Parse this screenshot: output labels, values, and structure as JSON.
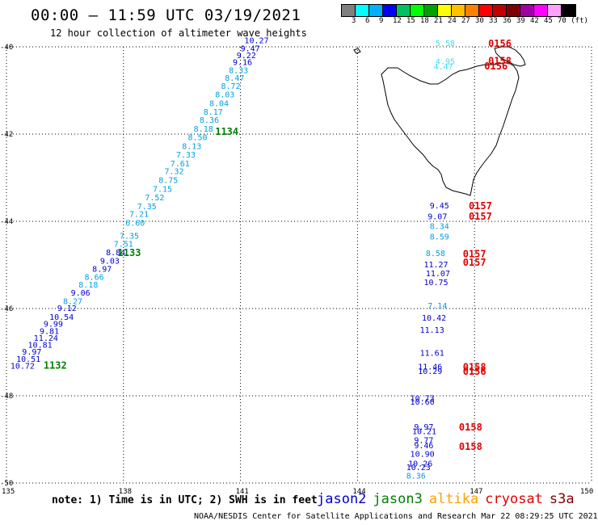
{
  "header": {
    "title": "00:00 – 11:59 UTC 03/19/2021",
    "subtitle": "12 hour collection of altimeter wave heights"
  },
  "colorbar": {
    "colors": [
      "#808080",
      "#00ffff",
      "#00b0ff",
      "#0000ff",
      "#00c060",
      "#00ff00",
      "#00a000",
      "#ffff00",
      "#ffc000",
      "#ff8000",
      "#ff0000",
      "#c00000",
      "#800000",
      "#a000a0",
      "#ff00ff",
      "#ffa0ff",
      "#000000"
    ],
    "labels": [
      "3",
      "6",
      "9",
      "12",
      "15",
      "18",
      "21",
      "24",
      "27",
      "30",
      "33",
      "36",
      "39",
      "42",
      "45",
      "70 (ft)"
    ]
  },
  "axes": {
    "lat_labels": [
      "-40",
      "-42",
      "-44",
      "-46",
      "-48",
      "-50"
    ],
    "lat_values": [
      -40,
      -42,
      -44,
      -46,
      -48,
      -50
    ],
    "lon_labels": [
      "135",
      "138",
      "141",
      "144",
      "147",
      "150"
    ],
    "lon_values": [
      135,
      138,
      141,
      144,
      147,
      150
    ],
    "lon_range": [
      135,
      150
    ],
    "lat_range": [
      -40,
      -50
    ]
  },
  "track_west": {
    "values": [
      {
        "v": "10.72",
        "lon": 135.1,
        "lat": -47.38,
        "c": "#0000cd"
      },
      {
        "v": "10.51",
        "lon": 135.25,
        "lat": -47.22,
        "c": "#0000cd"
      },
      {
        "v": "9.97",
        "lon": 135.4,
        "lat": -47.06,
        "c": "#0000cd"
      },
      {
        "v": "10.81",
        "lon": 135.55,
        "lat": -46.9,
        "c": "#0000cd"
      },
      {
        "v": "11.24",
        "lon": 135.7,
        "lat": -46.74,
        "c": "#0000cd"
      },
      {
        "v": "9.81",
        "lon": 135.85,
        "lat": -46.58,
        "c": "#0000cd"
      },
      {
        "v": "9.99",
        "lon": 135.95,
        "lat": -46.42,
        "c": "#0000cd"
      },
      {
        "v": "10.54",
        "lon": 136.1,
        "lat": -46.26,
        "c": "#0000cd"
      },
      {
        "v": "9.12",
        "lon": 136.3,
        "lat": -46.06,
        "c": "#0000cd"
      },
      {
        "v": "8.27",
        "lon": 136.45,
        "lat": -45.9,
        "c": "#00a0e0"
      },
      {
        "v": "9.06",
        "lon": 136.65,
        "lat": -45.7,
        "c": "#0000cd"
      },
      {
        "v": "8.18",
        "lon": 136.85,
        "lat": -45.52,
        "c": "#00a0e0"
      },
      {
        "v": "8.66",
        "lon": 137.0,
        "lat": -45.34,
        "c": "#00a0e0"
      },
      {
        "v": "8.97",
        "lon": 137.2,
        "lat": -45.16,
        "c": "#0000cd"
      },
      {
        "v": "9.03",
        "lon": 137.4,
        "lat": -44.97,
        "c": "#0000cd"
      },
      {
        "v": "8.84",
        "lon": 137.55,
        "lat": -44.78,
        "c": "#0000cd"
      },
      {
        "v": "7.51",
        "lon": 137.75,
        "lat": -44.58,
        "c": "#00a0e0"
      },
      {
        "v": "7.35",
        "lon": 137.9,
        "lat": -44.4,
        "c": "#00a0e0"
      },
      {
        "v": "6.60",
        "lon": 138.05,
        "lat": -44.1,
        "c": "#00a0e0"
      },
      {
        "v": "7.21",
        "lon": 138.15,
        "lat": -43.9,
        "c": "#00a0e0"
      },
      {
        "v": "7.35",
        "lon": 138.35,
        "lat": -43.72,
        "c": "#00a0e0"
      },
      {
        "v": "7.52",
        "lon": 138.55,
        "lat": -43.52,
        "c": "#00a0e0"
      },
      {
        "v": "7.15",
        "lon": 138.75,
        "lat": -43.32,
        "c": "#00a0e0"
      },
      {
        "v": "8.75",
        "lon": 138.9,
        "lat": -43.12,
        "c": "#00a0e0"
      },
      {
        "v": "7.32",
        "lon": 139.05,
        "lat": -42.92,
        "c": "#00a0e0"
      },
      {
        "v": "7.61",
        "lon": 139.2,
        "lat": -42.74,
        "c": "#00a0e0"
      },
      {
        "v": "7.33",
        "lon": 139.35,
        "lat": -42.54,
        "c": "#00a0e0"
      },
      {
        "v": "8.13",
        "lon": 139.5,
        "lat": -42.34,
        "c": "#00a0e0"
      },
      {
        "v": "8.50",
        "lon": 139.65,
        "lat": -42.14,
        "c": "#00a0e0"
      },
      {
        "v": "8.18",
        "lon": 139.8,
        "lat": -41.94,
        "c": "#00a0e0"
      },
      {
        "v": "8.36",
        "lon": 139.95,
        "lat": -41.74,
        "c": "#00a0e0"
      },
      {
        "v": "8.17",
        "lon": 140.05,
        "lat": -41.56,
        "c": "#00a0e0"
      },
      {
        "v": "8.04",
        "lon": 140.2,
        "lat": -41.36,
        "c": "#00a0e0"
      },
      {
        "v": "8.03",
        "lon": 140.35,
        "lat": -41.16,
        "c": "#00a0e0"
      },
      {
        "v": "8.72",
        "lon": 140.5,
        "lat": -40.96,
        "c": "#00a0e0"
      },
      {
        "v": "8.47",
        "lon": 140.6,
        "lat": -40.78,
        "c": "#00a0e0"
      },
      {
        "v": "8.33",
        "lon": 140.7,
        "lat": -40.6,
        "c": "#00a0e0"
      },
      {
        "v": "9.16",
        "lon": 140.8,
        "lat": -40.42,
        "c": "#0000cd"
      },
      {
        "v": "9.22",
        "lon": 140.9,
        "lat": -40.26,
        "c": "#0000cd"
      },
      {
        "v": "9.47",
        "lon": 141.0,
        "lat": -40.1,
        "c": "#0000cd"
      },
      {
        "v": "10.27",
        "lon": 141.1,
        "lat": -39.92,
        "c": "#0000cd"
      }
    ],
    "times": [
      {
        "t": "1132",
        "lon": 135.95,
        "lat": -47.38
      },
      {
        "t": "1133",
        "lon": 137.85,
        "lat": -44.8
      },
      {
        "t": "1134",
        "lon": 140.35,
        "lat": -42.02
      }
    ]
  },
  "track_east": {
    "values": [
      {
        "v": "5.58",
        "lon": 146.0,
        "lat": -39.98,
        "c": "#40e0f0"
      },
      {
        "v": "4.95",
        "lon": 146.0,
        "lat": -40.4,
        "c": "#40e0f0"
      },
      {
        "v": "4.47",
        "lon": 145.95,
        "lat": -40.52,
        "c": "#40e0f0"
      },
      {
        "v": "9.45",
        "lon": 145.85,
        "lat": -43.7,
        "c": "#0000cd"
      },
      {
        "v": "9.07",
        "lon": 145.8,
        "lat": -43.95,
        "c": "#0000cd"
      },
      {
        "v": "8.34",
        "lon": 145.85,
        "lat": -44.18,
        "c": "#00a0e0"
      },
      {
        "v": "8.59",
        "lon": 145.85,
        "lat": -44.42,
        "c": "#00a0e0"
      },
      {
        "v": "8.58",
        "lon": 145.75,
        "lat": -44.8,
        "c": "#00a0e0"
      },
      {
        "v": "11.27",
        "lon": 145.7,
        "lat": -45.06,
        "c": "#0000cd"
      },
      {
        "v": "11.07",
        "lon": 145.75,
        "lat": -45.26,
        "c": "#0000cd"
      },
      {
        "v": "10.75",
        "lon": 145.7,
        "lat": -45.46,
        "c": "#0000cd"
      },
      {
        "v": "7.14",
        "lon": 145.8,
        "lat": -46.0,
        "c": "#00a0e0"
      },
      {
        "v": "10.42",
        "lon": 145.65,
        "lat": -46.28,
        "c": "#0000cd"
      },
      {
        "v": "11.13",
        "lon": 145.6,
        "lat": -46.56,
        "c": "#0000cd"
      },
      {
        "v": "11.61",
        "lon": 145.6,
        "lat": -47.08,
        "c": "#0000cd"
      },
      {
        "v": "11.46",
        "lon": 145.55,
        "lat": -47.4,
        "c": "#0000cd"
      },
      {
        "v": "10.29",
        "lon": 145.55,
        "lat": -47.5,
        "c": "#0000cd"
      },
      {
        "v": "10.73",
        "lon": 145.35,
        "lat": -48.12,
        "c": "#0000cd"
      },
      {
        "v": "10.60",
        "lon": 145.35,
        "lat": -48.2,
        "c": "#0000cd"
      },
      {
        "v": "9.97",
        "lon": 145.45,
        "lat": -48.78,
        "c": "#0000cd"
      },
      {
        "v": "10.21",
        "lon": 145.4,
        "lat": -48.88,
        "c": "#0000cd"
      },
      {
        "v": "9.77",
        "lon": 145.45,
        "lat": -49.08,
        "c": "#0000cd"
      },
      {
        "v": "9.46",
        "lon": 145.45,
        "lat": -49.2,
        "c": "#0000cd"
      },
      {
        "v": "10.90",
        "lon": 145.35,
        "lat": -49.4,
        "c": "#0000cd"
      },
      {
        "v": "10.26",
        "lon": 145.3,
        "lat": -49.62,
        "c": "#0000cd"
      },
      {
        "v": "10.23",
        "lon": 145.25,
        "lat": -49.7,
        "c": "#0000cd"
      },
      {
        "v": "8.36",
        "lon": 145.25,
        "lat": -49.9,
        "c": "#00a0e0"
      }
    ],
    "times": [
      {
        "t": "0156",
        "lon": 147.35,
        "lat": -40.0
      },
      {
        "t": "0158",
        "lon": 147.35,
        "lat": -40.4
      },
      {
        "t": "0156",
        "lon": 147.25,
        "lat": -40.52
      },
      {
        "t": "0157",
        "lon": 146.85,
        "lat": -43.72
      },
      {
        "t": "0157",
        "lon": 146.85,
        "lat": -43.96
      },
      {
        "t": "0157",
        "lon": 146.7,
        "lat": -44.82
      },
      {
        "t": "0157",
        "lon": 146.7,
        "lat": -45.02
      },
      {
        "t": "0158",
        "lon": 146.7,
        "lat": -47.42
      },
      {
        "t": "0156",
        "lon": 146.7,
        "lat": -47.52
      },
      {
        "t": "0158",
        "lon": 146.6,
        "lat": -48.8
      },
      {
        "t": "0158",
        "lon": 146.6,
        "lat": -49.24
      }
    ]
  },
  "footer": {
    "note": "note: 1) Time is in UTC; 2) SWH is in feet",
    "legend": [
      {
        "name": "jason2",
        "color": "#0000cd"
      },
      {
        "name": "jason3",
        "color": "#008000"
      },
      {
        "name": "altika",
        "color": "#ffa000"
      },
      {
        "name": "cryosat",
        "color": "#e00000"
      },
      {
        "name": "s3a",
        "color": "#800000"
      }
    ],
    "credit": "NOAA/NESDIS Center for Satellite Applications and Research    Mar 22 08:29:25 UTC 2021"
  }
}
